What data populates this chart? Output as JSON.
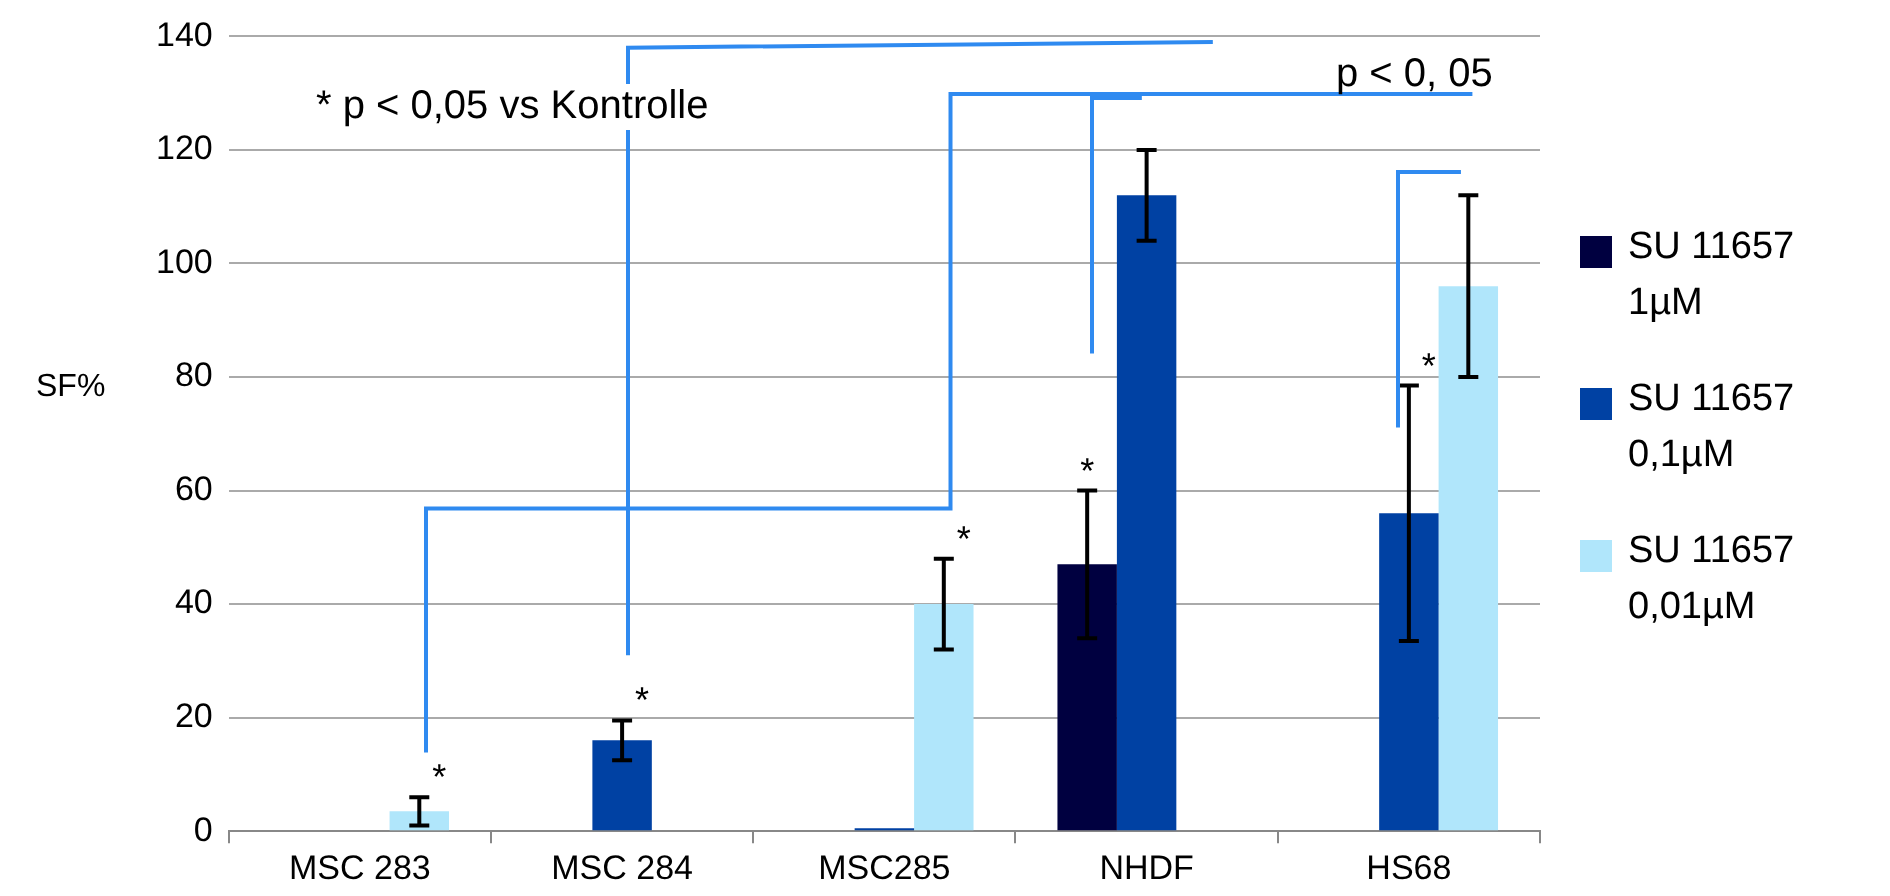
{
  "chart_data": {
    "type": "bar",
    "ylabel": "SF%",
    "categories": [
      "MSC 283",
      "MSC 284",
      "MSC285",
      "NHDF",
      "HS68"
    ],
    "series": [
      {
        "name": "SU 11657 1µM",
        "color": "#000040",
        "values": [
          null,
          null,
          null,
          47,
          null
        ],
        "errors": [
          null,
          null,
          null,
          13,
          null
        ]
      },
      {
        "name": "SU 11657 0,1µM",
        "color": "#0041a3",
        "values": [
          null,
          16,
          0.5,
          112,
          56
        ],
        "errors": [
          null,
          3.5,
          null,
          8,
          22.5
        ]
      },
      {
        "name": "SU 11657 0,01µM",
        "color": "#b0e6fb",
        "values": [
          3.5,
          null,
          40,
          null,
          96
        ],
        "errors": [
          2.5,
          null,
          8,
          null,
          16
        ]
      }
    ],
    "ylim": [
      0,
      140
    ],
    "yticks": [
      0,
      20,
      40,
      60,
      80,
      100,
      120,
      140
    ],
    "grid": "y",
    "legend": "right",
    "annotations": [
      "* p < 0,05 vs Kontrolle",
      "p < 0, 05",
      "*",
      "*",
      "*",
      "*",
      "*"
    ]
  }
}
